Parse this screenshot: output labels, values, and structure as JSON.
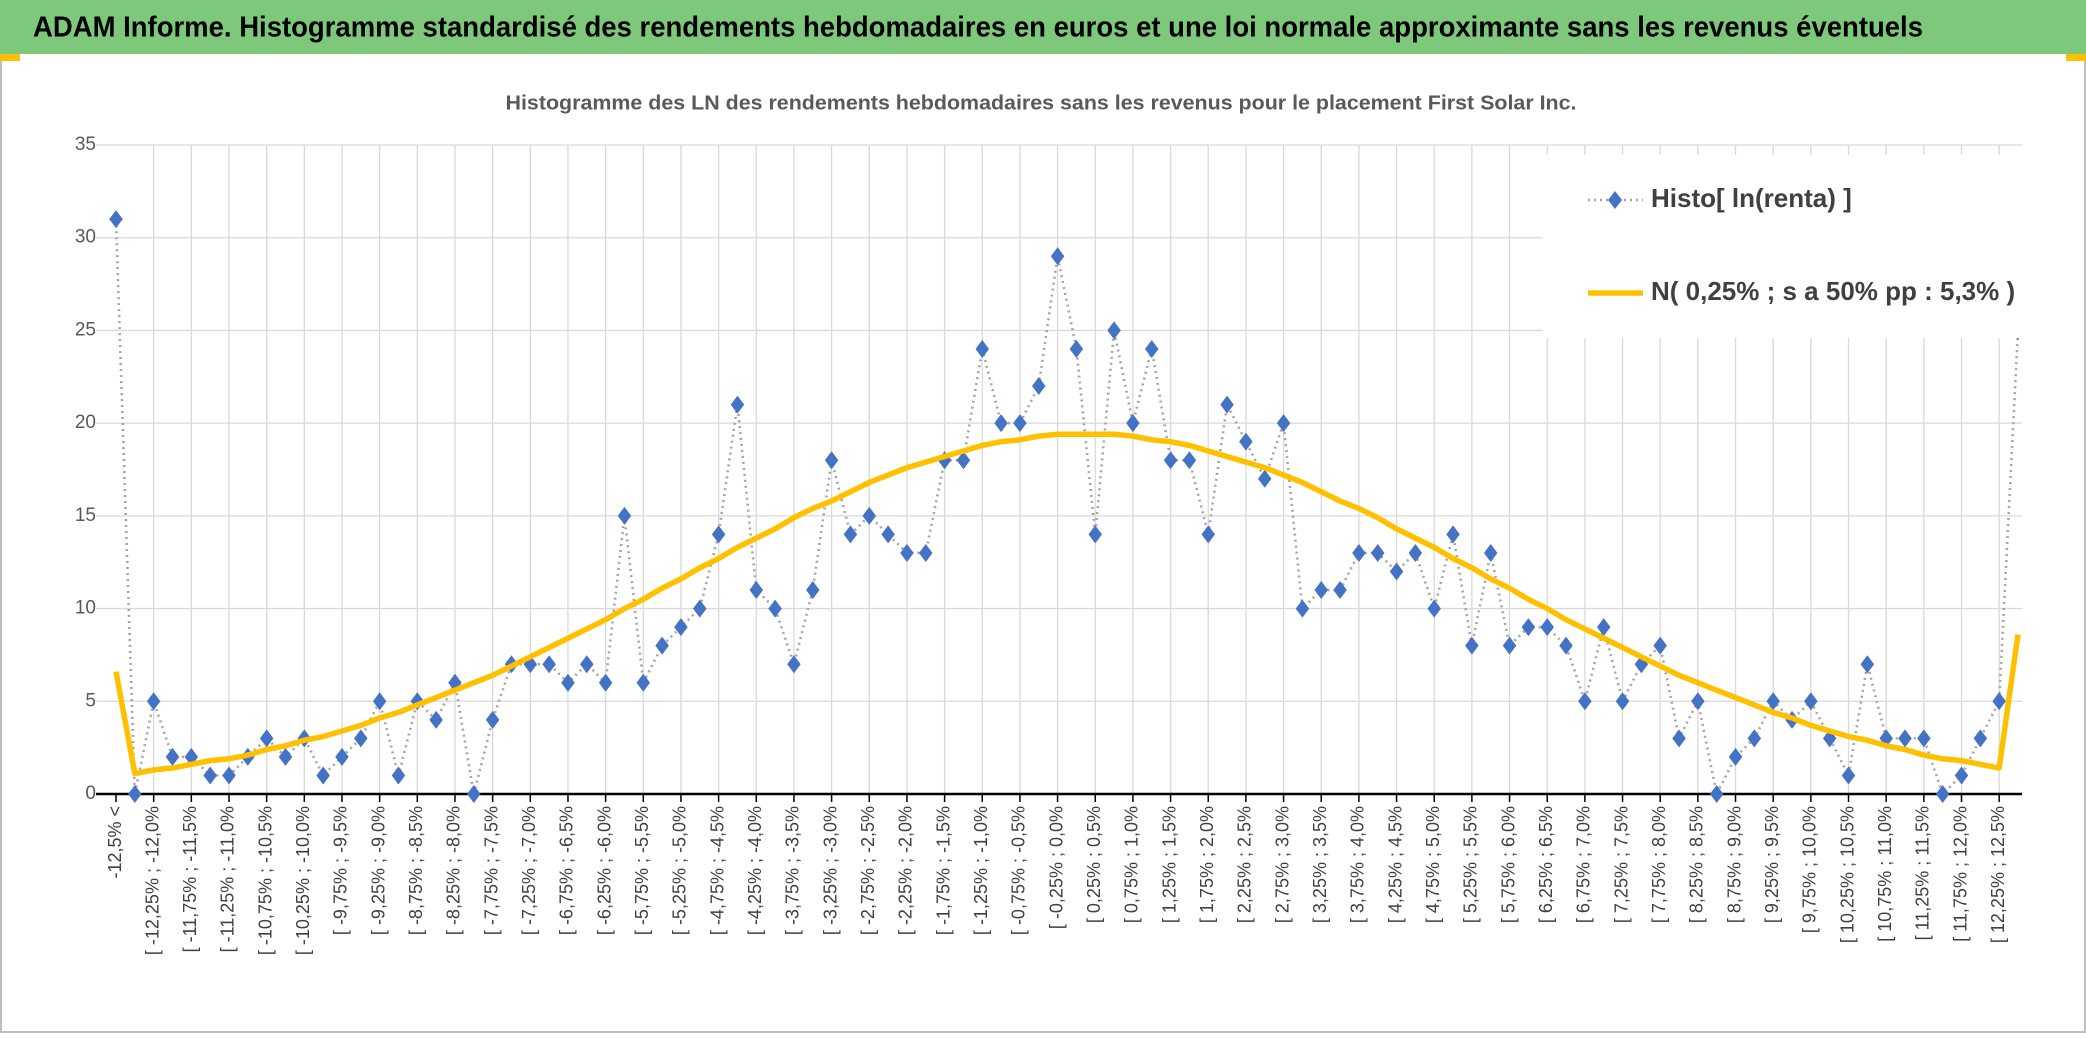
{
  "header": {
    "title": "ADAM Informe. Histogramme standardisé des rendements hebdomadaires en euros et une loi normale approximante sans les revenus éventuels"
  },
  "chart_data": {
    "type": "line",
    "title": "Histogramme des LN des rendements hebdomadaires sans les revenus pour le placement First Solar Inc.",
    "categories": [
      "-12,5% <",
      null,
      "[ -12,25% ; -12,0%",
      null,
      "[ -11,75% ; -11,5%",
      null,
      "[ -11,25% ; -11,0%",
      null,
      "[ -10,75% ; -10,5%",
      null,
      "[ -10,25% ; -10,0%",
      null,
      "[ -9,75% ; -9,5%",
      null,
      "[ -9,25% ; -9,0%",
      null,
      "[ -8,75% ; -8,5%",
      null,
      "[ -8,25% ; -8,0%",
      null,
      "[ -7,75% ; -7,5%",
      null,
      "[ -7,25% ; -7,0%",
      null,
      "[ -6,75% ; -6,5%",
      null,
      "[ -6,25% ; -6,0%",
      null,
      "[ -5,75% ; -5,5%",
      null,
      "[ -5,25% ; -5,0%",
      null,
      "[ -4,75% ; -4,5%",
      null,
      "[ -4,25% ; -4,0%",
      null,
      "[ -3,75% ; -3,5%",
      null,
      "[ -3,25% ; -3,0%",
      null,
      "[ -2,75% ; -2,5%",
      null,
      "[ -2,25% ; -2,0%",
      null,
      "[ -1,75% ; -1,5%",
      null,
      "[ -1,25% ; -1,0%",
      null,
      "[ -0,75% ; -0,5%",
      null,
      "[ -0,25% ; 0,0%",
      null,
      "[ 0,25% ; 0,5%",
      null,
      "[ 0,75% ; 1,0%",
      null,
      "[ 1,25% ; 1,5%",
      null,
      "[ 1,75% ; 2,0%",
      null,
      "[ 2,25% ; 2,5%",
      null,
      "[ 2,75% ; 3,0%",
      null,
      "[ 3,25% ; 3,5%",
      null,
      "[ 3,75% ; 4,0%",
      null,
      "[ 4,25% ; 4,5%",
      null,
      "[ 4,75% ; 5,0%",
      null,
      "[ 5,25% ; 5,5%",
      null,
      "[ 5,75% ; 6,0%",
      null,
      "[ 6,25% ; 6,5%",
      null,
      "[ 6,75% ; 7,0%",
      null,
      "[ 7,25% ; 7,5%",
      null,
      "[ 7,75% ; 8,0%",
      null,
      "[ 8,25% ; 8,5%",
      null,
      "[ 8,75% ; 9,0%",
      null,
      "[ 9,25% ; 9,5%",
      null,
      "[ 9,75% ; 10,0%",
      null,
      "[ 10,25% ; 10,5%",
      null,
      "[ 10,75% ; 11,0%",
      null,
      "[ 11,25% ; 11,5%",
      null,
      "[ 11,75% ; 12,0%",
      null,
      "[ 12,25% ; 12,5%",
      null
    ],
    "series": [
      {
        "name": "Histo[ ln(renta) ]",
        "color": "#4472c4",
        "values": [
          31,
          0,
          5,
          2,
          2,
          1,
          1,
          2,
          3,
          2,
          3,
          1,
          2,
          3,
          5,
          1,
          5,
          4,
          6,
          0,
          4,
          7,
          7,
          7,
          6,
          7,
          6,
          15,
          6,
          8,
          9,
          10,
          14,
          21,
          11,
          10,
          7,
          11,
          18,
          14,
          15,
          14,
          13,
          13,
          18,
          18,
          24,
          20,
          20,
          22,
          29,
          24,
          14,
          25,
          20,
          24,
          18,
          18,
          14,
          21,
          19,
          17,
          20,
          10,
          11,
          11,
          13,
          13,
          12,
          13,
          10,
          14,
          8,
          13,
          8,
          9,
          9,
          8,
          5,
          9,
          5,
          7,
          8,
          3,
          5,
          0,
          2,
          3,
          5,
          4,
          5,
          3,
          1,
          7,
          3,
          3,
          3,
          0,
          1,
          3,
          5,
          25
        ]
      },
      {
        "name": "N( 0,25% ; s a 50% pp : 5,3% )",
        "color": "#ffc000",
        "values": [
          6.6,
          1.1,
          1.3,
          1.4,
          1.6,
          1.8,
          1.9,
          2.1,
          2.4,
          2.6,
          2.9,
          3.1,
          3.4,
          3.7,
          4.1,
          4.4,
          4.8,
          5.2,
          5.6,
          6.0,
          6.4,
          6.9,
          7.4,
          7.9,
          8.4,
          8.9,
          9.4,
          10.0,
          10.5,
          11.1,
          11.6,
          12.2,
          12.7,
          13.3,
          13.8,
          14.3,
          14.9,
          15.4,
          15.8,
          16.3,
          16.8,
          17.2,
          17.6,
          17.9,
          18.2,
          18.5,
          18.8,
          19.0,
          19.1,
          19.3,
          19.4,
          19.4,
          19.4,
          19.4,
          19.3,
          19.1,
          19.0,
          18.8,
          18.5,
          18.2,
          17.9,
          17.6,
          17.2,
          16.8,
          16.3,
          15.8,
          15.4,
          14.9,
          14.3,
          13.8,
          13.3,
          12.7,
          12.2,
          11.6,
          11.1,
          10.5,
          10.0,
          9.4,
          8.9,
          8.4,
          7.9,
          7.4,
          6.9,
          6.4,
          6.0,
          5.6,
          5.2,
          4.8,
          4.4,
          4.1,
          3.7,
          3.4,
          3.1,
          2.9,
          2.6,
          2.4,
          2.1,
          1.9,
          1.8,
          1.6,
          1.4,
          8.6
        ]
      }
    ],
    "ylim": [
      0,
      35
    ],
    "yticks": [
      0,
      5,
      10,
      15,
      20,
      25,
      30,
      35
    ],
    "grid": true,
    "legend": "upper right"
  }
}
